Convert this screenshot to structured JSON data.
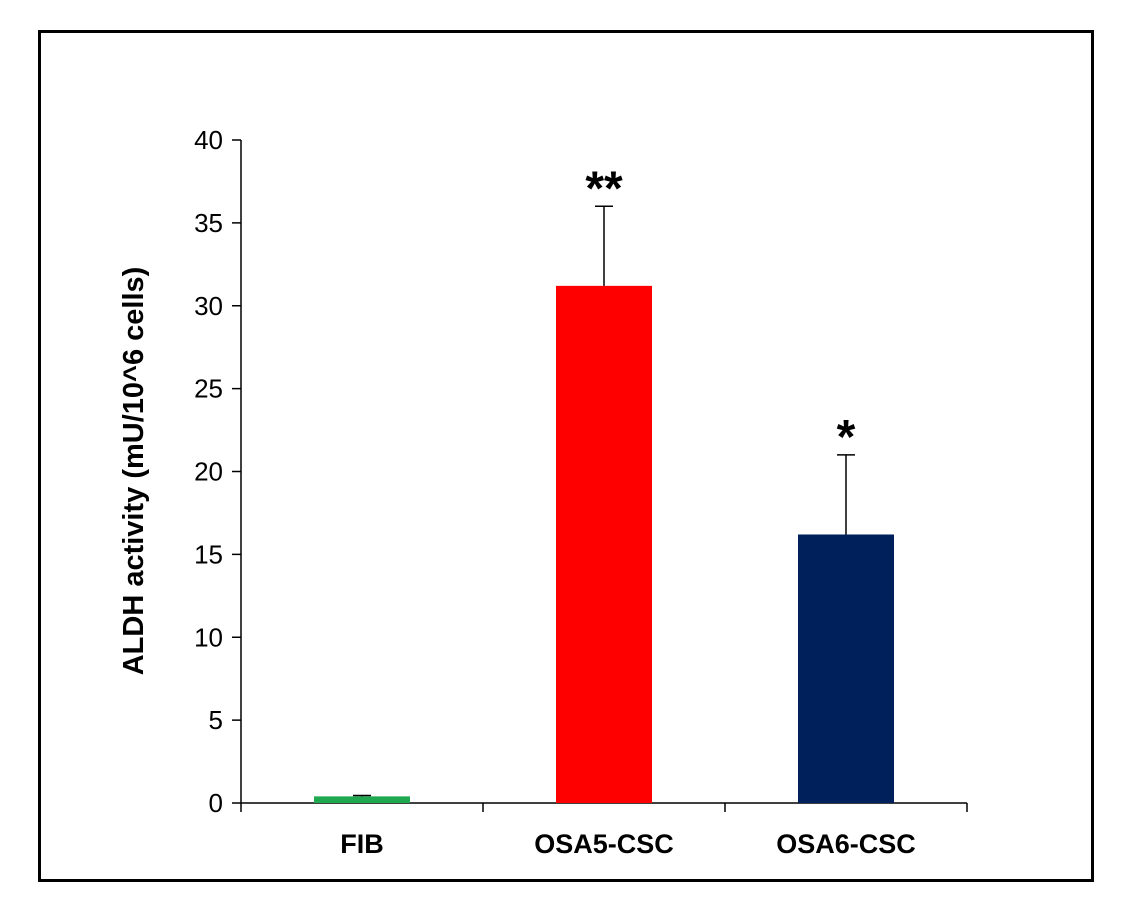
{
  "chart_data": {
    "type": "bar",
    "title": "",
    "xlabel": "",
    "ylabel": "ALDH activity (mU/10^6 cells)",
    "ylim": [
      0,
      40
    ],
    "yticks": [
      0,
      5,
      10,
      15,
      20,
      25,
      30,
      35,
      40
    ],
    "grid": false,
    "categories": [
      "FIB",
      "OSA5-CSC",
      "OSA6-CSC"
    ],
    "values": [
      0.4,
      31.2,
      16.2
    ],
    "error": [
      0.05,
      4.8,
      4.8
    ],
    "significance": [
      "",
      "**",
      "*"
    ],
    "colors": [
      "#1fa84f",
      "#ff0000",
      "#00205b"
    ]
  }
}
